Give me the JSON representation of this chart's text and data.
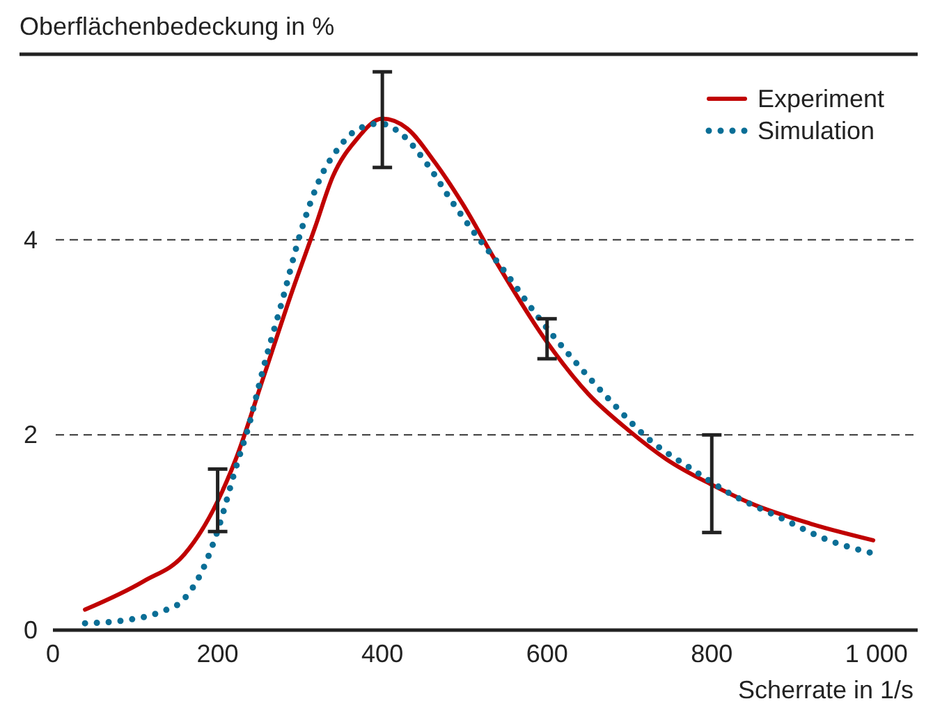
{
  "chart_data": {
    "type": "line",
    "xlabel": "Scherrate in 1/s",
    "ylabel": "Oberflächenbedeckung in %",
    "xlim": [
      0,
      1050
    ],
    "ylim": [
      0,
      5.9
    ],
    "xticks": [
      0,
      200,
      400,
      600,
      800,
      {
        "value": 1000,
        "label": "1 000"
      }
    ],
    "yticks": [
      0,
      2,
      4
    ],
    "grid": "y",
    "legend": "top right",
    "series": [
      {
        "name": "Experiment",
        "color": "#c00000",
        "line_style": "solid",
        "x": [
          39,
          110,
          160,
          200,
          222,
          256,
          290,
          318,
          340,
          368,
          400,
          430,
          464,
          498,
          537,
          600,
          650,
          700,
          745,
          800,
          847,
          920,
          996
        ],
        "values": [
          0.21,
          0.5,
          0.78,
          1.32,
          1.75,
          2.6,
          3.46,
          4.12,
          4.65,
          5.02,
          5.24,
          5.14,
          4.79,
          4.36,
          3.79,
          2.95,
          2.42,
          2.04,
          1.75,
          1.49,
          1.3,
          1.09,
          0.92
        ],
        "errors": [
          null,
          null,
          null,
          [
            1.01,
            1.65
          ],
          null,
          null,
          null,
          null,
          null,
          null,
          [
            4.74,
            5.72
          ],
          null,
          null,
          null,
          null,
          [
            2.78,
            3.19
          ],
          null,
          null,
          null,
          [
            1.0,
            2.0
          ],
          null,
          null,
          null
        ]
      },
      {
        "name": "Simulation",
        "color": "#0a6e96",
        "line_style": "dotted",
        "x": [
          39,
          87,
          132,
          157,
          183,
          200,
          222,
          239,
          256,
          278,
          301,
          324,
          346,
          368,
          397,
          425,
          453,
          487,
          509,
          549,
          588,
          630,
          678,
          723,
          774,
          824,
          881,
          942,
          999
        ],
        "values": [
          0.07,
          0.1,
          0.19,
          0.3,
          0.64,
          1.02,
          1.66,
          2.13,
          2.7,
          3.36,
          4.08,
          4.62,
          4.93,
          5.12,
          5.19,
          5.07,
          4.79,
          4.36,
          4.1,
          3.67,
          3.22,
          2.79,
          2.34,
          1.96,
          1.66,
          1.39,
          1.16,
          0.92,
          0.78
        ]
      }
    ]
  }
}
